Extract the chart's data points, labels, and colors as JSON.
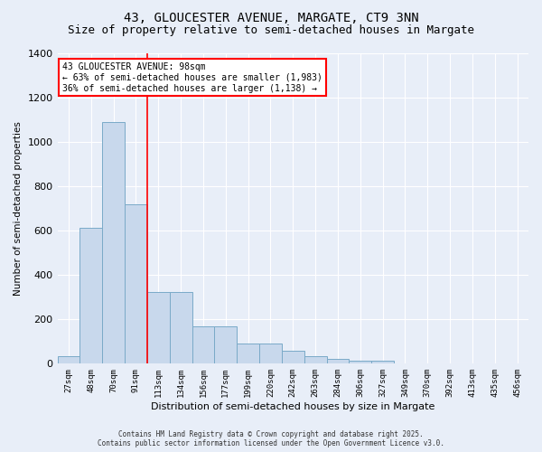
{
  "title1": "43, GLOUCESTER AVENUE, MARGATE, CT9 3NN",
  "title2": "Size of property relative to semi-detached houses in Margate",
  "bar_label": "43 GLOUCESTER AVENUE: 98sqm",
  "annotation_left": "← 63% of semi-detached houses are smaller (1,983)",
  "annotation_right": "36% of semi-detached houses are larger (1,138) →",
  "xlabel": "Distribution of semi-detached houses by size in Margate",
  "ylabel": "Number of semi-detached properties",
  "footer1": "Contains HM Land Registry data © Crown copyright and database right 2025.",
  "footer2": "Contains public sector information licensed under the Open Government Licence v3.0.",
  "bin_labels": [
    "27sqm",
    "48sqm",
    "70sqm",
    "91sqm",
    "113sqm",
    "134sqm",
    "156sqm",
    "177sqm",
    "199sqm",
    "220sqm",
    "242sqm",
    "263sqm",
    "284sqm",
    "306sqm",
    "327sqm",
    "349sqm",
    "370sqm",
    "392sqm",
    "413sqm",
    "435sqm",
    "456sqm"
  ],
  "bar_values": [
    35,
    615,
    1090,
    720,
    325,
    325,
    170,
    170,
    90,
    90,
    60,
    35,
    20,
    15,
    15,
    0,
    0,
    0,
    0,
    0,
    0
  ],
  "bar_color": "#c8d8ec",
  "bar_edge_color": "#7aaac8",
  "vline_color": "red",
  "vline_pos": 3.5,
  "ylim": [
    0,
    1400
  ],
  "yticks": [
    0,
    200,
    400,
    600,
    800,
    1000,
    1200,
    1400
  ],
  "bg_color": "#e8eef8",
  "plot_bg_color": "#e8eef8",
  "annotation_box_color": "white",
  "annotation_box_edge": "red",
  "grid_color": "#ffffff",
  "title_fontsize": 10,
  "subtitle_fontsize": 9
}
